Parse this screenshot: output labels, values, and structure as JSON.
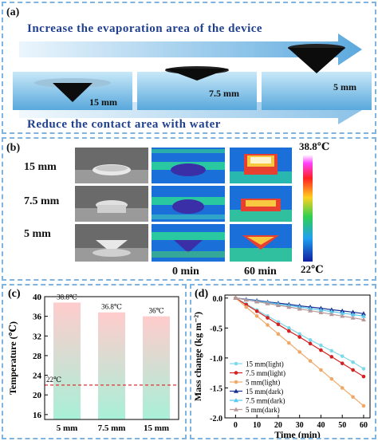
{
  "panel_a": {
    "label": "(a)",
    "title_top": "Increase the evaporation area of the device",
    "title_bottom": "Reduce the contact area with water",
    "devices": [
      "15 mm",
      "7.5 mm",
      "5 mm"
    ]
  },
  "panel_b": {
    "label": "(b)",
    "rows": [
      "15 mm",
      "7.5 mm",
      "5 mm"
    ],
    "col_labels": [
      "0 min",
      "60 min"
    ],
    "colorbar_max": "38.8℃",
    "colorbar_min": "22℃"
  },
  "chart_data": [
    {
      "panel": "(c)",
      "type": "bar",
      "categories": [
        "5 mm",
        "7.5 mm",
        "15 mm"
      ],
      "values": [
        38.8,
        36.8,
        36.0
      ],
      "data_labels": [
        "38.8℃",
        "36.8℃",
        "36℃"
      ],
      "ylabel": "Temperature (℃)",
      "ylim": [
        15,
        40
      ],
      "yticks": [
        16,
        20,
        24,
        28,
        32,
        36,
        40
      ],
      "reference_line": {
        "value": 22,
        "label": "22℃",
        "color": "#e03030"
      },
      "bar_gradient": [
        "#ffcccc",
        "#a8f0d8"
      ]
    },
    {
      "panel": "(d)",
      "type": "line",
      "xlabel": "Time (min)",
      "ylabel": "Mass change (kg m⁻²)",
      "xlim": [
        -5,
        63
      ],
      "ylim": [
        -2.0,
        0.05
      ],
      "xticks": [
        0,
        10,
        20,
        30,
        40,
        50,
        60
      ],
      "yticks": [
        0.0,
        -0.5,
        -1.0,
        -1.5,
        -2.0
      ],
      "x": [
        0,
        5,
        10,
        15,
        20,
        25,
        30,
        35,
        40,
        45,
        50,
        55,
        60
      ],
      "series": [
        {
          "name": "15 mm(light)",
          "color": "#7fd8e8",
          "marker": "circle",
          "values": [
            0,
            -0.1,
            -0.2,
            -0.3,
            -0.4,
            -0.5,
            -0.6,
            -0.7,
            -0.79,
            -0.88,
            -0.97,
            -1.07,
            -1.18
          ]
        },
        {
          "name": "7.5 mm(light)",
          "color": "#d42020",
          "marker": "circle",
          "values": [
            0,
            -0.11,
            -0.22,
            -0.33,
            -0.44,
            -0.55,
            -0.65,
            -0.76,
            -0.87,
            -0.98,
            -1.09,
            -1.2,
            -1.31
          ]
        },
        {
          "name": "5 mm(light)",
          "color": "#f0a868",
          "marker": "circle",
          "values": [
            0,
            -0.15,
            -0.3,
            -0.45,
            -0.6,
            -0.75,
            -0.9,
            -1.05,
            -1.2,
            -1.35,
            -1.5,
            -1.65,
            -1.8
          ]
        },
        {
          "name": "15 mm(dark)",
          "color": "#1a2f8f",
          "marker": "triangle",
          "values": [
            0,
            -0.02,
            -0.04,
            -0.065,
            -0.085,
            -0.105,
            -0.13,
            -0.15,
            -0.17,
            -0.195,
            -0.215,
            -0.235,
            -0.26
          ]
        },
        {
          "name": "7.5 mm(dark)",
          "color": "#58c8f0",
          "marker": "triangle",
          "values": [
            0,
            -0.025,
            -0.05,
            -0.075,
            -0.1,
            -0.125,
            -0.15,
            -0.175,
            -0.2,
            -0.225,
            -0.25,
            -0.275,
            -0.3
          ]
        },
        {
          "name": "5 mm(dark)",
          "color": "#b89898",
          "marker": "triangle",
          "values": [
            0,
            -0.03,
            -0.06,
            -0.09,
            -0.12,
            -0.15,
            -0.18,
            -0.21,
            -0.24,
            -0.27,
            -0.3,
            -0.33,
            -0.36
          ]
        }
      ],
      "legend_position": "bottom-left"
    }
  ]
}
